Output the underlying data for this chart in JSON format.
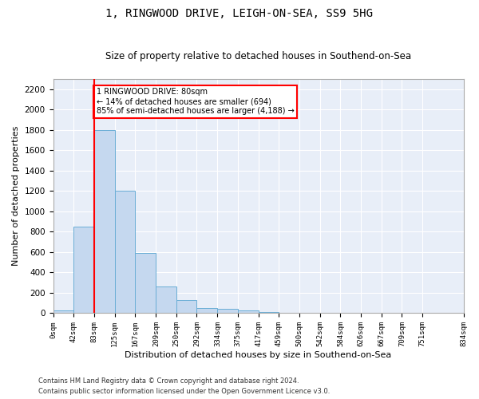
{
  "title": "1, RINGWOOD DRIVE, LEIGH-ON-SEA, SS9 5HG",
  "subtitle": "Size of property relative to detached houses in Southend-on-Sea",
  "xlabel": "Distribution of detached houses by size in Southend-on-Sea",
  "ylabel": "Number of detached properties",
  "footnote1": "Contains HM Land Registry data © Crown copyright and database right 2024.",
  "footnote2": "Contains public sector information licensed under the Open Government Licence v3.0.",
  "bar_values": [
    25,
    850,
    1800,
    1200,
    590,
    260,
    130,
    50,
    45,
    30,
    15,
    0,
    0,
    0,
    0,
    0,
    0,
    0,
    0
  ],
  "bin_edges": [
    0,
    42,
    83,
    125,
    167,
    209,
    250,
    292,
    334,
    375,
    417,
    459,
    500,
    542,
    584,
    626,
    667,
    709,
    751,
    834
  ],
  "tick_labels": [
    "0sqm",
    "42sqm",
    "83sqm",
    "125sqm",
    "167sqm",
    "209sqm",
    "250sqm",
    "292sqm",
    "334sqm",
    "375sqm",
    "417sqm",
    "459sqm",
    "500sqm",
    "542sqm",
    "584sqm",
    "626sqm",
    "667sqm",
    "709sqm",
    "751sqm",
    "834sqm"
  ],
  "bar_color": "#c5d8ef",
  "bar_edge_color": "#6aaed6",
  "bg_color": "#e8eef8",
  "grid_color": "#ffffff",
  "red_line_x": 83,
  "annotation_text": "1 RINGWOOD DRIVE: 80sqm\n← 14% of detached houses are smaller (694)\n85% of semi-detached houses are larger (4,188) →",
  "ylim": [
    0,
    2300
  ],
  "yticks": [
    0,
    200,
    400,
    600,
    800,
    1000,
    1200,
    1400,
    1600,
    1800,
    2000,
    2200
  ]
}
